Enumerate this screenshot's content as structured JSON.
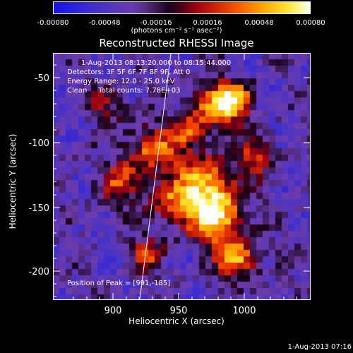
{
  "colorbar": {
    "ticks": [
      "-0.00080",
      "-0.00048",
      "-0.00016",
      "0.00016",
      "0.00048",
      "0.00080"
    ],
    "units": "(photons cm⁻² s⁻¹ asec⁻²)"
  },
  "title": "Reconstructed RHESSI Image",
  "annotations": {
    "time_range": "1-Aug-2013 08:13:20.000 to 08:15:44.000",
    "detectors": "Detectors: 3F 5F 6F 7F 8F 9F, Att 0",
    "energy": "Energy Range: 12.0 - 25.0 keV",
    "clean": "Clean     Total counts: 7.78E+03",
    "peak": "Position of Peak = [991,-185]"
  },
  "xaxis": {
    "label": "Heliocentric X (arcsec)",
    "ticks": [
      "900",
      "950",
      "1000"
    ]
  },
  "yaxis": {
    "label": "Heliocentric Y (arcsec)",
    "ticks": [
      "-50",
      "-100",
      "-150",
      "-200"
    ]
  },
  "datestamp": "1-Aug-2013 07:16"
}
